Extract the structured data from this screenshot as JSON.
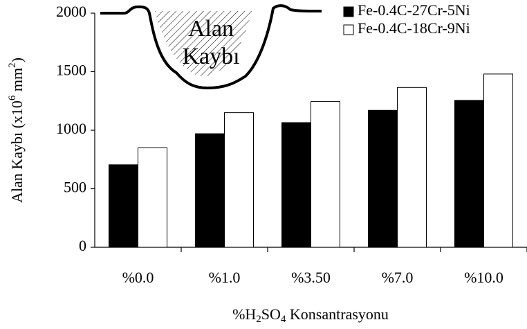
{
  "chart_data": {
    "type": "bar",
    "categories": [
      "%0.0",
      "%1.0",
      "%3.50",
      "%7.0",
      "%10.0"
    ],
    "series": [
      {
        "name": "Fe-0.4C-27Cr-5Ni",
        "color": "#000000",
        "values": [
          705,
          970,
          1065,
          1170,
          1255
        ]
      },
      {
        "name": "Fe-0.4C-18Cr-9Ni",
        "color": "#ffffff",
        "values": [
          850,
          1150,
          1245,
          1365,
          1480
        ]
      }
    ],
    "y_label": [
      "Alan Kaybı (x10",
      "6",
      " mm",
      "2",
      ")"
    ],
    "x_label": [
      "%H",
      "2",
      "SO",
      "4",
      " Konsantrasyonu"
    ],
    "annotation": [
      "Alan",
      "Kaybı"
    ],
    "ylim": [
      0,
      2000
    ],
    "yticks": [
      0,
      500,
      1000,
      1500,
      2000
    ],
    "grid": false,
    "legend": "top-right"
  }
}
